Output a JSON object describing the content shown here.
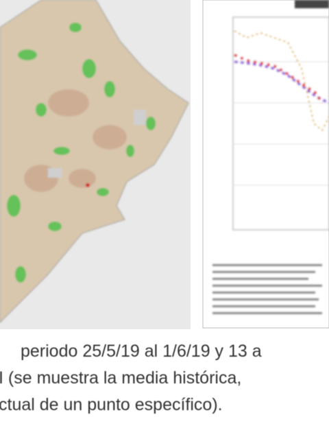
{
  "caption": {
    "lines": [
      "periodo 25/5/19 al 1/6/19 y 13 a",
      "I (se muestra la media histórica,",
      "ctual de un punto específico)."
    ]
  }
}
